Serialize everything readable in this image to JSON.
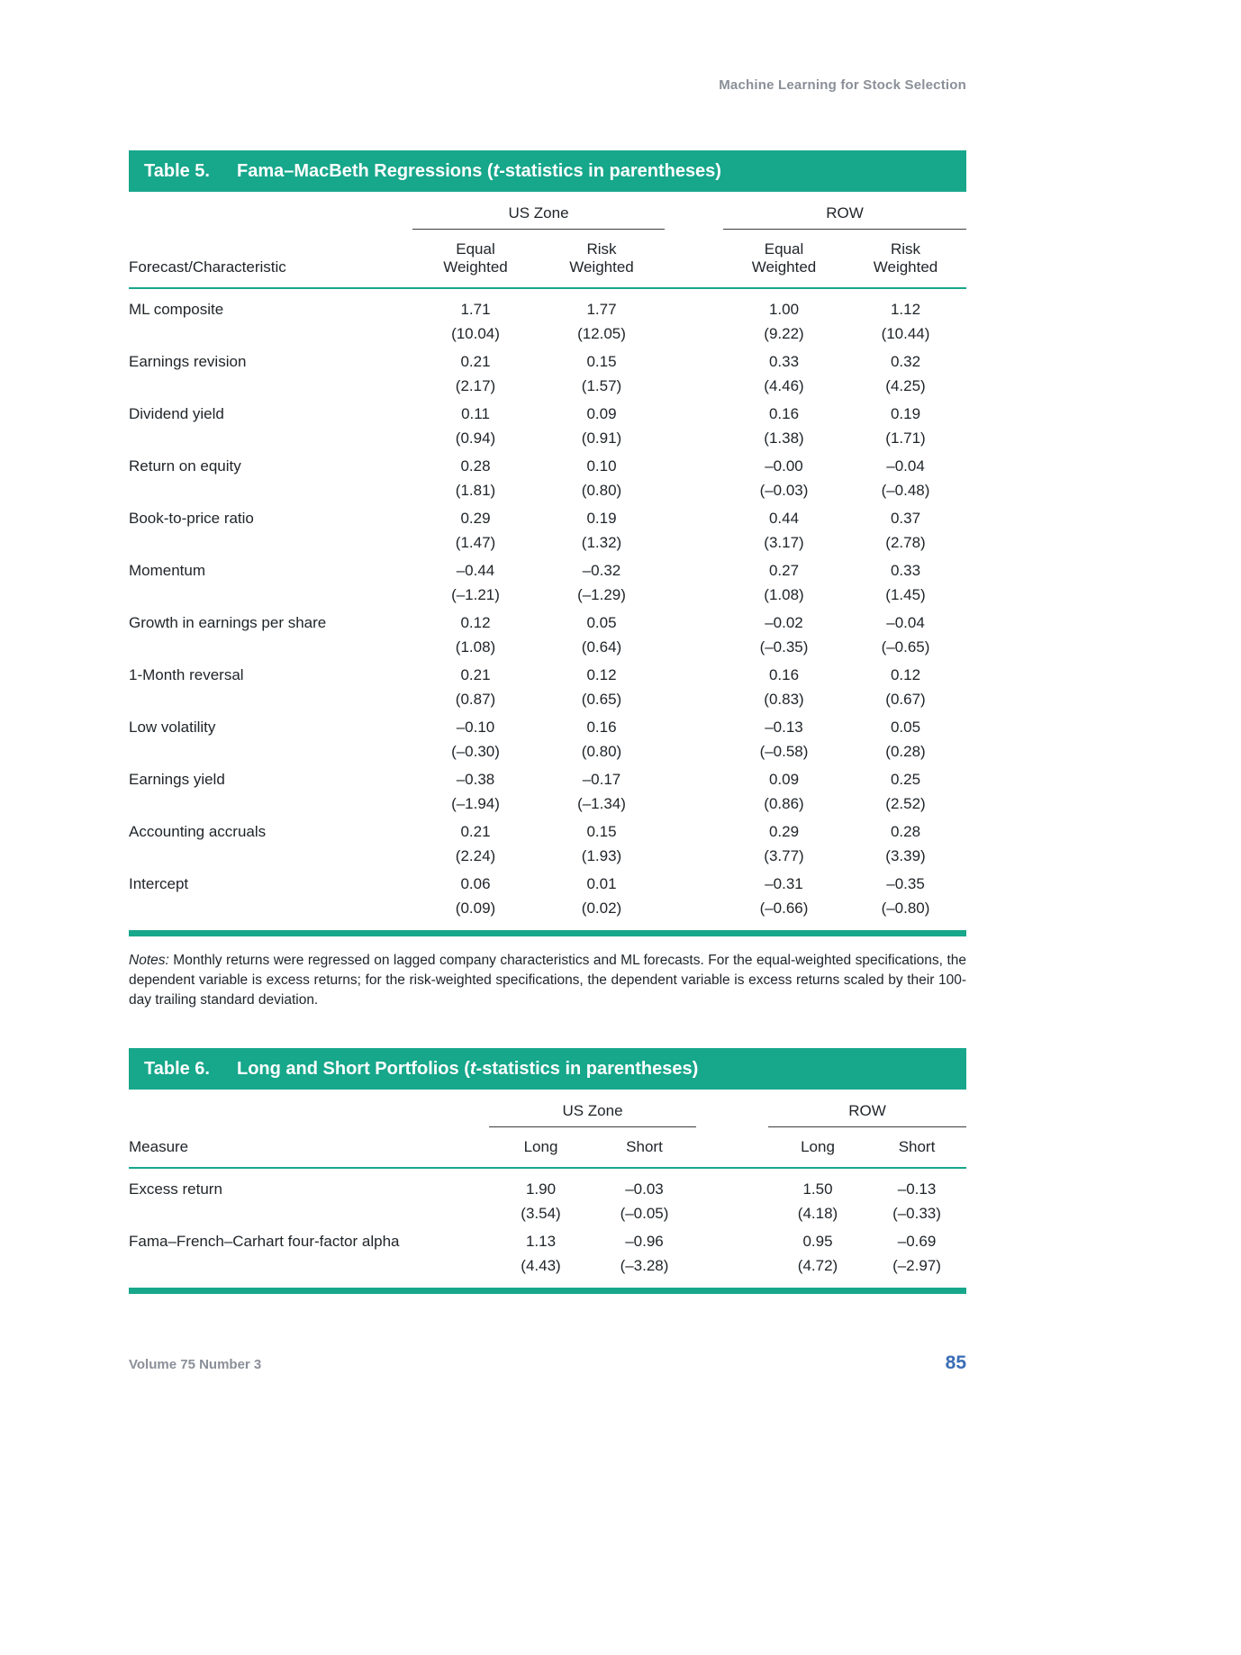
{
  "page": {
    "running_head": "Machine Learning for Stock Selection",
    "footer_left": "Volume 75 Number 3",
    "page_number": "85"
  },
  "colors": {
    "accent_teal": "#17a78b",
    "page_number_blue": "#3a6db4",
    "running_head_gray": "#8a8f98"
  },
  "table5": {
    "label": "Table 5.",
    "title_pre": "Fama–MacBeth Regressions (",
    "title_italic": "t",
    "title_post": "-statistics in parentheses)",
    "group_headers": [
      "US Zone",
      "ROW"
    ],
    "col_header_label": "Forecast/Characteristic",
    "col_headers": [
      "Equal\nWeighted",
      "Risk\nWeighted",
      "Equal\nWeighted",
      "Risk\nWeighted"
    ],
    "rows": [
      {
        "label": "ML composite",
        "values": [
          "1.71",
          "1.77",
          "1.00",
          "1.12"
        ],
        "tstats": [
          "(10.04)",
          "(12.05)",
          "(9.22)",
          "(10.44)"
        ]
      },
      {
        "label": "Earnings revision",
        "values": [
          "0.21",
          "0.15",
          "0.33",
          "0.32"
        ],
        "tstats": [
          "(2.17)",
          "(1.57)",
          "(4.46)",
          "(4.25)"
        ]
      },
      {
        "label": "Dividend yield",
        "values": [
          "0.11",
          "0.09",
          "0.16",
          "0.19"
        ],
        "tstats": [
          "(0.94)",
          "(0.91)",
          "(1.38)",
          "(1.71)"
        ]
      },
      {
        "label": "Return on equity",
        "values": [
          "0.28",
          "0.10",
          "–0.00",
          "–0.04"
        ],
        "tstats": [
          "(1.81)",
          "(0.80)",
          "(–0.03)",
          "(–0.48)"
        ]
      },
      {
        "label": "Book-to-price ratio",
        "values": [
          "0.29",
          "0.19",
          "0.44",
          "0.37"
        ],
        "tstats": [
          "(1.47)",
          "(1.32)",
          "(3.17)",
          "(2.78)"
        ]
      },
      {
        "label": "Momentum",
        "values": [
          "–0.44",
          "–0.32",
          "0.27",
          "0.33"
        ],
        "tstats": [
          "(–1.21)",
          "(–1.29)",
          "(1.08)",
          "(1.45)"
        ]
      },
      {
        "label": "Growth in earnings per share",
        "values": [
          "0.12",
          "0.05",
          "–0.02",
          "–0.04"
        ],
        "tstats": [
          "(1.08)",
          "(0.64)",
          "(–0.35)",
          "(–0.65)"
        ]
      },
      {
        "label": "1-Month reversal",
        "values": [
          "0.21",
          "0.12",
          "0.16",
          "0.12"
        ],
        "tstats": [
          "(0.87)",
          "(0.65)",
          "(0.83)",
          "(0.67)"
        ]
      },
      {
        "label": "Low volatility",
        "values": [
          "–0.10",
          "0.16",
          "–0.13",
          "0.05"
        ],
        "tstats": [
          "(–0.30)",
          "(0.80)",
          "(–0.58)",
          "(0.28)"
        ]
      },
      {
        "label": "Earnings yield",
        "values": [
          "–0.38",
          "–0.17",
          "0.09",
          "0.25"
        ],
        "tstats": [
          "(–1.94)",
          "(–1.34)",
          "(0.86)",
          "(2.52)"
        ]
      },
      {
        "label": "Accounting accruals",
        "values": [
          "0.21",
          "0.15",
          "0.29",
          "0.28"
        ],
        "tstats": [
          "(2.24)",
          "(1.93)",
          "(3.77)",
          "(3.39)"
        ]
      },
      {
        "label": "Intercept",
        "values": [
          "0.06",
          "0.01",
          "–0.31",
          "–0.35"
        ],
        "tstats": [
          "(0.09)",
          "(0.02)",
          "(–0.66)",
          "(–0.80)"
        ]
      }
    ],
    "notes_label": "Notes:",
    "notes_text": " Monthly returns were regressed on lagged company characteristics and ML forecasts. For the equal-weighted specifications, the dependent variable is excess returns; for the risk-weighted specifications, the dependent variable is excess returns scaled by their 100-day trailing standard deviation."
  },
  "table6": {
    "label": "Table 6.",
    "title_pre": "Long and Short Portfolios (",
    "title_italic": "t",
    "title_post": "-statistics in parentheses)",
    "group_headers": [
      "US Zone",
      "ROW"
    ],
    "col_header_label": "Measure",
    "col_headers": [
      "Long",
      "Short",
      "Long",
      "Short"
    ],
    "rows": [
      {
        "label": "Excess return",
        "values": [
          "1.90",
          "–0.03",
          "1.50",
          "–0.13"
        ],
        "tstats": [
          "(3.54)",
          "(–0.05)",
          "(4.18)",
          "(–0.33)"
        ]
      },
      {
        "label": "Fama–French–Carhart four-factor alpha",
        "values": [
          "1.13",
          "–0.96",
          "0.95",
          "–0.69"
        ],
        "tstats": [
          "(4.43)",
          "(–3.28)",
          "(4.72)",
          "(–2.97)"
        ]
      }
    ]
  }
}
